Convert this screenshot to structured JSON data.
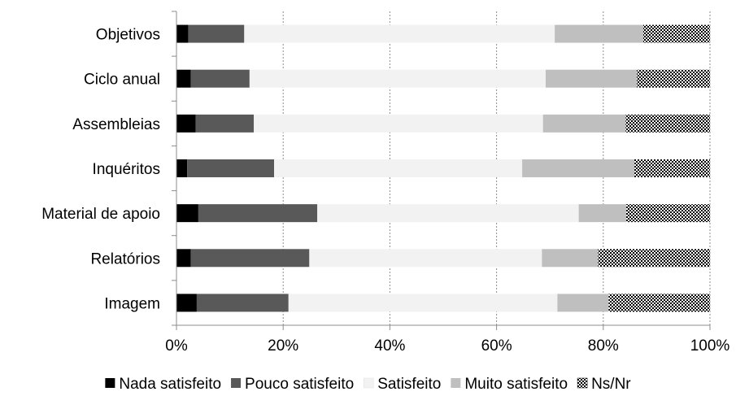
{
  "chart_data": {
    "type": "bar",
    "orientation": "horizontal",
    "stacked": "percent",
    "categories": [
      "Objetivos",
      "Ciclo anual",
      "Assembleias",
      "Inquéritos",
      "Material de apoio",
      "Relatórios",
      "Imagem"
    ],
    "series": [
      {
        "name": "Nada satisfeito",
        "color": "#000000",
        "pattern": "solid",
        "values": [
          2.2,
          2.7,
          3.6,
          2.0,
          4.1,
          2.7,
          3.8
        ]
      },
      {
        "name": "Pouco satisfeito",
        "color": "#595959",
        "pattern": "solid",
        "values": [
          10.5,
          11.0,
          10.9,
          16.3,
          22.3,
          22.2,
          17.2
        ]
      },
      {
        "name": "Satisfeito",
        "color": "#f2f2f2",
        "pattern": "solid",
        "values": [
          58.2,
          55.5,
          54.2,
          46.5,
          49.0,
          43.6,
          50.4
        ]
      },
      {
        "name": "Muito satisfeito",
        "color": "#bfbfbf",
        "pattern": "solid",
        "values": [
          16.6,
          17.1,
          15.5,
          21.0,
          8.9,
          10.5,
          9.6
        ]
      },
      {
        "name": "Ns/Nr",
        "color": "#000000",
        "pattern": "checker",
        "values": [
          12.5,
          13.7,
          15.8,
          14.2,
          15.7,
          21.0,
          19.0
        ]
      }
    ],
    "xlim": [
      0,
      100
    ],
    "x_ticks": [
      "0%",
      "20%",
      "40%",
      "60%",
      "80%",
      "100%"
    ],
    "grid": "vertical dotted",
    "legend_position": "bottom",
    "title": "",
    "xlabel": "",
    "ylabel": ""
  }
}
